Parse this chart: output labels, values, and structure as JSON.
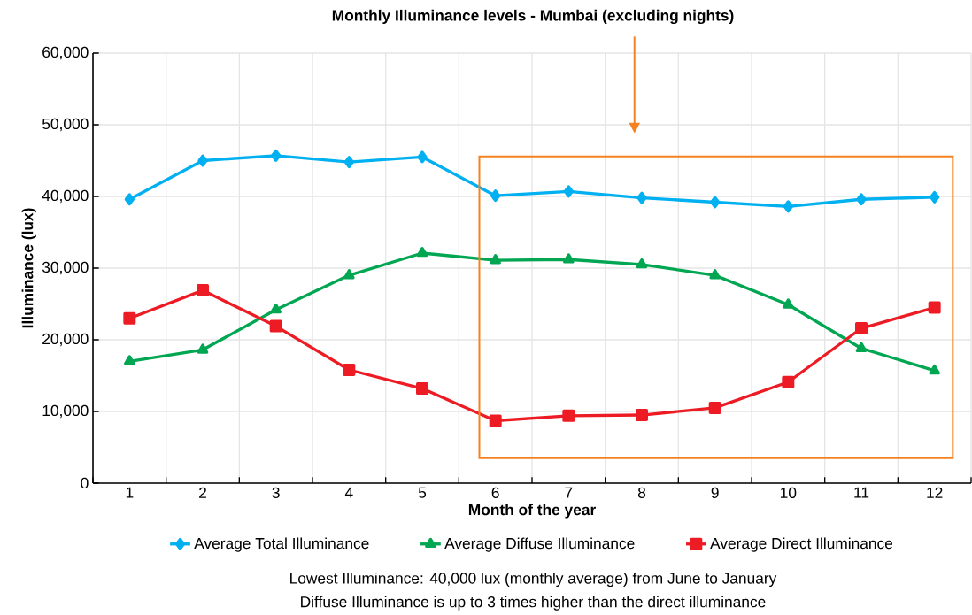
{
  "chart_data": {
    "type": "line",
    "title": "Monthly Illuminance levels - Mumbai (excluding nights)",
    "xlabel": "Month of the year",
    "ylabel": "Illuminance (lux)",
    "categories": [
      "1",
      "2",
      "3",
      "4",
      "5",
      "6",
      "7",
      "8",
      "9",
      "10",
      "11",
      "12"
    ],
    "series": [
      {
        "name": "Average Total Illuminance",
        "color": "#00b0f0",
        "marker": "diamond",
        "values": [
          39600,
          45000,
          45700,
          44800,
          45500,
          40100,
          40700,
          39800,
          39200,
          38600,
          39600,
          39900
        ]
      },
      {
        "name": "Average Diffuse Illuminance",
        "color": "#00a651",
        "marker": "triangle",
        "values": [
          17000,
          18600,
          24200,
          29000,
          32100,
          31100,
          31200,
          30500,
          29000,
          24900,
          18800,
          15700
        ]
      },
      {
        "name": "Average Direct Illuminance",
        "color": "#ed1c24",
        "marker": "square",
        "values": [
          23000,
          26900,
          21900,
          15800,
          13200,
          8700,
          9400,
          9500,
          10500,
          14100,
          21600,
          24500
        ]
      }
    ],
    "ylim": [
      0,
      60000
    ],
    "yticks": [
      0,
      {
        "value": 10000,
        "label": "10,000"
      },
      {
        "value": 20000,
        "label": "20,000"
      },
      {
        "value": 30000,
        "label": "30,000"
      },
      {
        "value": 40000,
        "label": "40,000"
      },
      {
        "value": 50000,
        "label": "50,000"
      },
      {
        "value": 60000,
        "label": "60,000"
      }
    ],
    "grid": true,
    "legend": "bottom",
    "line_style": "solid",
    "annotations": [
      "Lowest Illuminance: 40,000 lux (monthly average) from June to January",
      "Diffuse Illuminance is up to 3 times higher than the direct illuminance"
    ]
  }
}
